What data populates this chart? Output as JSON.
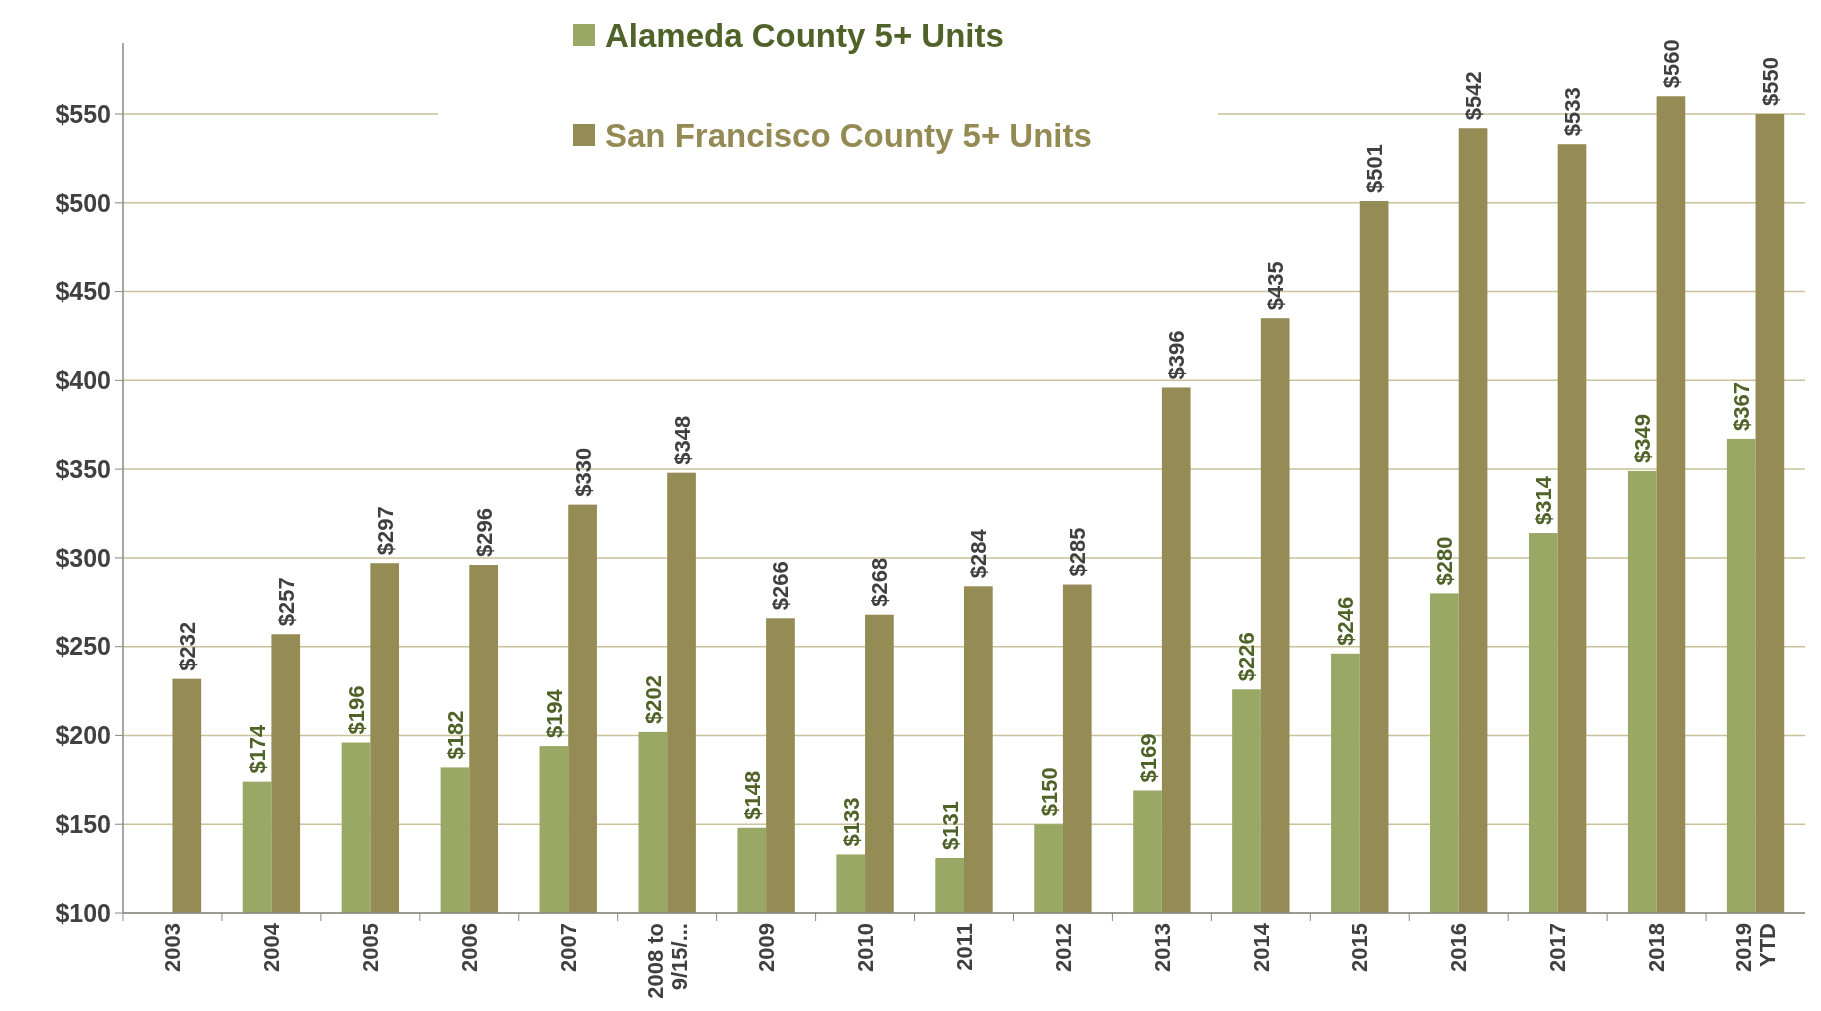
{
  "chart_data": {
    "type": "bar",
    "categories": [
      "2003",
      "2004",
      "2005",
      "2006",
      "2007",
      "2008 to 9/15/...",
      "2009",
      "2010",
      "2011",
      "2012",
      "2013",
      "2014",
      "2015",
      "2016",
      "2017",
      "2018",
      "2019 YTD"
    ],
    "series": [
      {
        "name": "Alameda County 5+ Units",
        "color": "#9aa865",
        "values": [
          null,
          174,
          196,
          182,
          194,
          202,
          148,
          133,
          131,
          150,
          169,
          226,
          246,
          280,
          314,
          349,
          367
        ],
        "value_labels": [
          null,
          "$174",
          "$196",
          "$182",
          "$194",
          "$202",
          "$148",
          "$133",
          "$131",
          "$150",
          "$169",
          "$226",
          "$246",
          "$280",
          "$314",
          "$349",
          "$367"
        ]
      },
      {
        "name": "San Francisco County 5+ Units",
        "color": "#958b55",
        "values": [
          232,
          257,
          297,
          296,
          330,
          348,
          266,
          268,
          284,
          285,
          396,
          435,
          501,
          542,
          533,
          560,
          550
        ],
        "value_labels": [
          "$232",
          "$257",
          "$297",
          "$296",
          "$330",
          "$348",
          "$266",
          "$268",
          "$284",
          "$285",
          "$396",
          "$435",
          "$501",
          "$542",
          "$533",
          "$560",
          "$550"
        ]
      }
    ],
    "ylim": [
      100,
      590
    ],
    "yticks": [
      {
        "value": 100,
        "label": "$100"
      },
      {
        "value": 150,
        "label": "$150"
      },
      {
        "value": 200,
        "label": "$200"
      },
      {
        "value": 250,
        "label": "$250"
      },
      {
        "value": 300,
        "label": "$300"
      },
      {
        "value": 350,
        "label": "$350"
      },
      {
        "value": 400,
        "label": "$400"
      },
      {
        "value": 450,
        "label": "$450"
      },
      {
        "value": 500,
        "label": "$500"
      },
      {
        "value": 550,
        "label": "$550"
      }
    ],
    "grid": "y",
    "legend": "top"
  }
}
